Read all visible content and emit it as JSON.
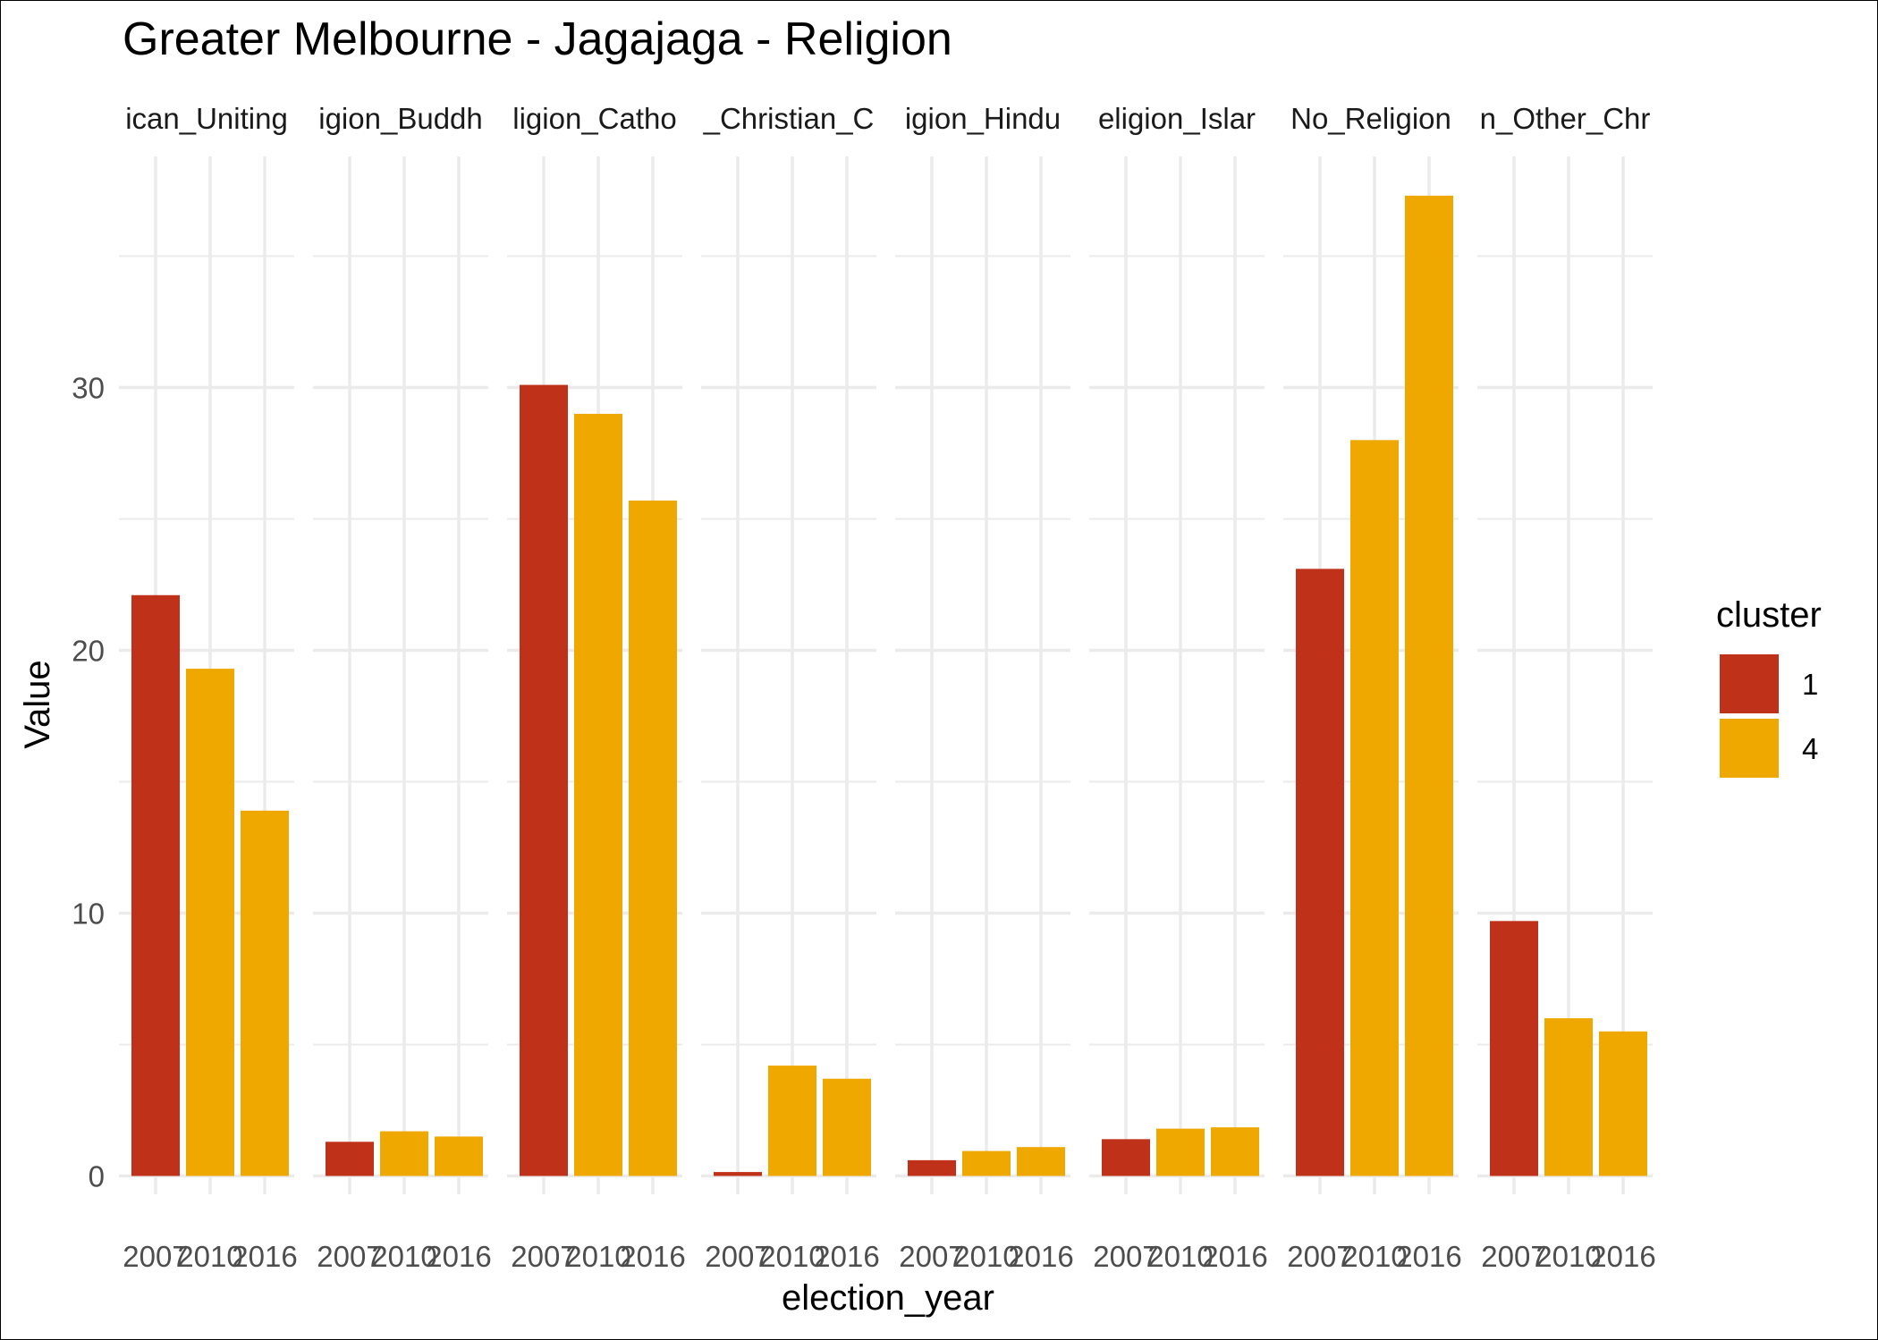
{
  "chart_data": {
    "type": "bar",
    "title": "Greater Melbourne - Jagajaga - Religion",
    "xlabel": "election_year",
    "ylabel": "Value",
    "ylim": [
      0,
      37.5
    ],
    "yticks": [
      0,
      10,
      20,
      30
    ],
    "grid": true,
    "legend": {
      "title": "cluster",
      "position": "right",
      "entries": [
        {
          "label": "1",
          "color": "#C0311A"
        },
        {
          "label": "4",
          "color": "#EFA800"
        }
      ]
    },
    "x_tick_labels": [
      "2007",
      "2010",
      "2016"
    ],
    "facets": [
      {
        "strip": "ican_Uniting",
        "values": [
          22.1,
          19.3,
          13.9
        ],
        "clusters": [
          "1",
          "4",
          "4"
        ]
      },
      {
        "strip": "igion_Buddh",
        "values": [
          1.3,
          1.7,
          1.5
        ],
        "clusters": [
          "1",
          "4",
          "4"
        ]
      },
      {
        "strip": "ligion_Catho",
        "values": [
          30.1,
          29.0,
          25.7
        ],
        "clusters": [
          "1",
          "4",
          "4"
        ]
      },
      {
        "strip": "_Christian_C",
        "values": [
          0.15,
          4.2,
          3.7
        ],
        "clusters": [
          "1",
          "4",
          "4"
        ]
      },
      {
        "strip": "igion_Hindu",
        "values": [
          0.6,
          0.95,
          1.1
        ],
        "clusters": [
          "1",
          "4",
          "4"
        ]
      },
      {
        "strip": "eligion_Islar",
        "values": [
          1.4,
          1.8,
          1.85
        ],
        "clusters": [
          "1",
          "4",
          "4"
        ]
      },
      {
        "strip": "No_Religion",
        "values": [
          23.1,
          28.0,
          37.3
        ],
        "clusters": [
          "1",
          "4",
          "4"
        ]
      },
      {
        "strip": "n_Other_Chr",
        "values": [
          9.7,
          6.0,
          5.5
        ],
        "clusters": [
          "1",
          "4",
          "4"
        ]
      }
    ]
  }
}
